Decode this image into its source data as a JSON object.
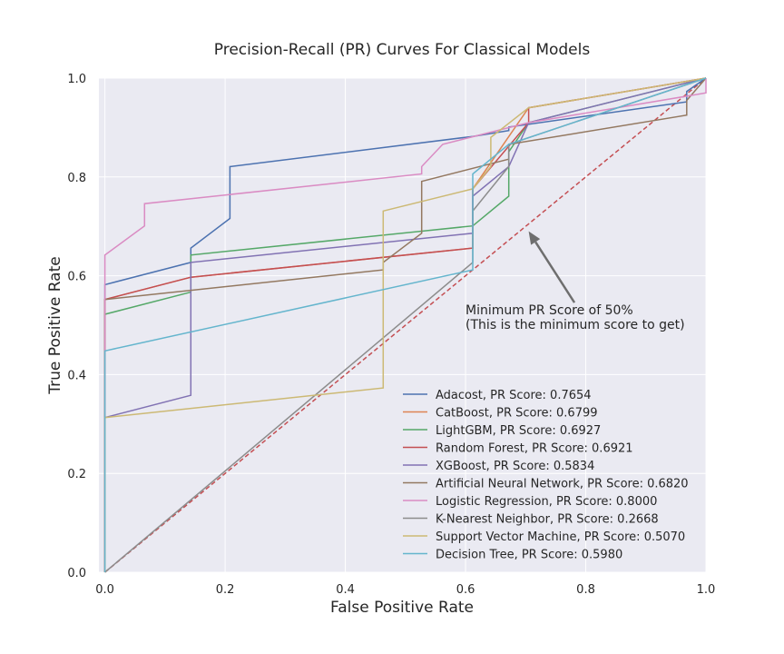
{
  "chart_data": {
    "type": "line",
    "title": "Precision-Recall (PR) Curves For Classical Models",
    "xlabel": "False Positive Rate",
    "ylabel": "True Positive Rate",
    "xlim": [
      -0.01,
      1.0
    ],
    "ylim": [
      0.0,
      1.0
    ],
    "xticks": [
      "0.0",
      "0.2",
      "0.4",
      "0.6",
      "0.8",
      "1.0"
    ],
    "yticks": [
      "0.0",
      "0.2",
      "0.4",
      "0.6",
      "0.8",
      "1.0"
    ],
    "grid": true,
    "legend_position": "lower-right",
    "annotation": {
      "line1": "Minimum PR Score of 50%",
      "line2": "(This is the minimum score to get)",
      "arrow_target": [
        0.705,
        0.69
      ],
      "text_anchor": [
        0.6,
        0.52
      ]
    },
    "reference_line": {
      "x": [
        0,
        1
      ],
      "y": [
        0,
        1
      ],
      "color": "#c44e52"
    },
    "series": [
      {
        "name": "Adacost, PR Score: 0.7654",
        "color": "#4c72b0",
        "x": [
          0,
          0,
          0.143,
          0.143,
          0.208,
          0.208,
          0.612,
          0.672,
          0.672,
          0.968,
          0.968,
          1.0
        ],
        "y": [
          0,
          0.582,
          0.627,
          0.656,
          0.716,
          0.821,
          0.882,
          0.894,
          0.901,
          0.952,
          0.973,
          1.0
        ]
      },
      {
        "name": "CatBoost, PR Score: 0.6799",
        "color": "#dd8452",
        "x": [
          0,
          0,
          0.143,
          0.612,
          0.612,
          0.705,
          1.0
        ],
        "y": [
          0,
          0.552,
          0.597,
          0.656,
          0.776,
          0.94,
          1.0
        ]
      },
      {
        "name": "LightGBM, PR Score: 0.6927",
        "color": "#55a868",
        "x": [
          0,
          0,
          0.143,
          0.143,
          0.612,
          0.672,
          0.672,
          0.705,
          1.0
        ],
        "y": [
          0,
          0.522,
          0.567,
          0.642,
          0.701,
          0.761,
          0.851,
          0.91,
          1.0
        ]
      },
      {
        "name": "Random Forest, PR Score: 0.6921",
        "color": "#c44e52",
        "x": [
          0,
          0,
          0.143,
          0.612,
          0.612,
          0.705,
          0.705,
          1.0
        ],
        "y": [
          0,
          0.552,
          0.597,
          0.656,
          0.776,
          0.91,
          0.94,
          1.0
        ]
      },
      {
        "name": "XGBoost, PR Score: 0.5834",
        "color": "#8172b3",
        "x": [
          0,
          0,
          0.143,
          0.143,
          0.612,
          0.612,
          0.672,
          0.705,
          1.0
        ],
        "y": [
          0,
          0.313,
          0.358,
          0.627,
          0.686,
          0.761,
          0.821,
          0.91,
          1.0
        ]
      },
      {
        "name": "Artificial Neural Network, PR Score: 0.6820",
        "color": "#937860",
        "x": [
          0,
          0,
          0.463,
          0.463,
          0.527,
          0.527,
          0.672,
          0.672,
          0.968,
          0.968,
          1.0
        ],
        "y": [
          0,
          0.552,
          0.612,
          0.627,
          0.686,
          0.791,
          0.836,
          0.866,
          0.925,
          0.955,
          1.0
        ]
      },
      {
        "name": "Logistic Regression, PR Score: 0.8000",
        "color": "#da8bc3",
        "x": [
          0,
          0,
          0.066,
          0.066,
          0.527,
          0.527,
          0.562,
          0.705,
          1.0,
          1.0
        ],
        "y": [
          0,
          0.642,
          0.701,
          0.746,
          0.806,
          0.821,
          0.866,
          0.91,
          0.97,
          1.0
        ]
      },
      {
        "name": "K-Nearest Neighbor, PR Score: 0.2668",
        "color": "#8c8c8c",
        "x": [
          0,
          0.612,
          0.612,
          0.672,
          0.672,
          1.0
        ],
        "y": [
          0,
          0.627,
          0.731,
          0.821,
          0.866,
          1.0
        ]
      },
      {
        "name": "Support Vector Machine, PR Score: 0.5070",
        "color": "#ccb974",
        "x": [
          0,
          0,
          0.463,
          0.463,
          0.612,
          0.642,
          0.642,
          0.705,
          1.0
        ],
        "y": [
          0,
          0.313,
          0.373,
          0.731,
          0.776,
          0.821,
          0.88,
          0.94,
          1.0
        ]
      },
      {
        "name": "Decision Tree, PR Score: 0.5980",
        "color": "#64b5cd",
        "x": [
          0,
          0,
          0.612,
          0.612,
          0.672,
          1.0
        ],
        "y": [
          0,
          0.448,
          0.612,
          0.806,
          0.866,
          1.0
        ]
      }
    ]
  }
}
